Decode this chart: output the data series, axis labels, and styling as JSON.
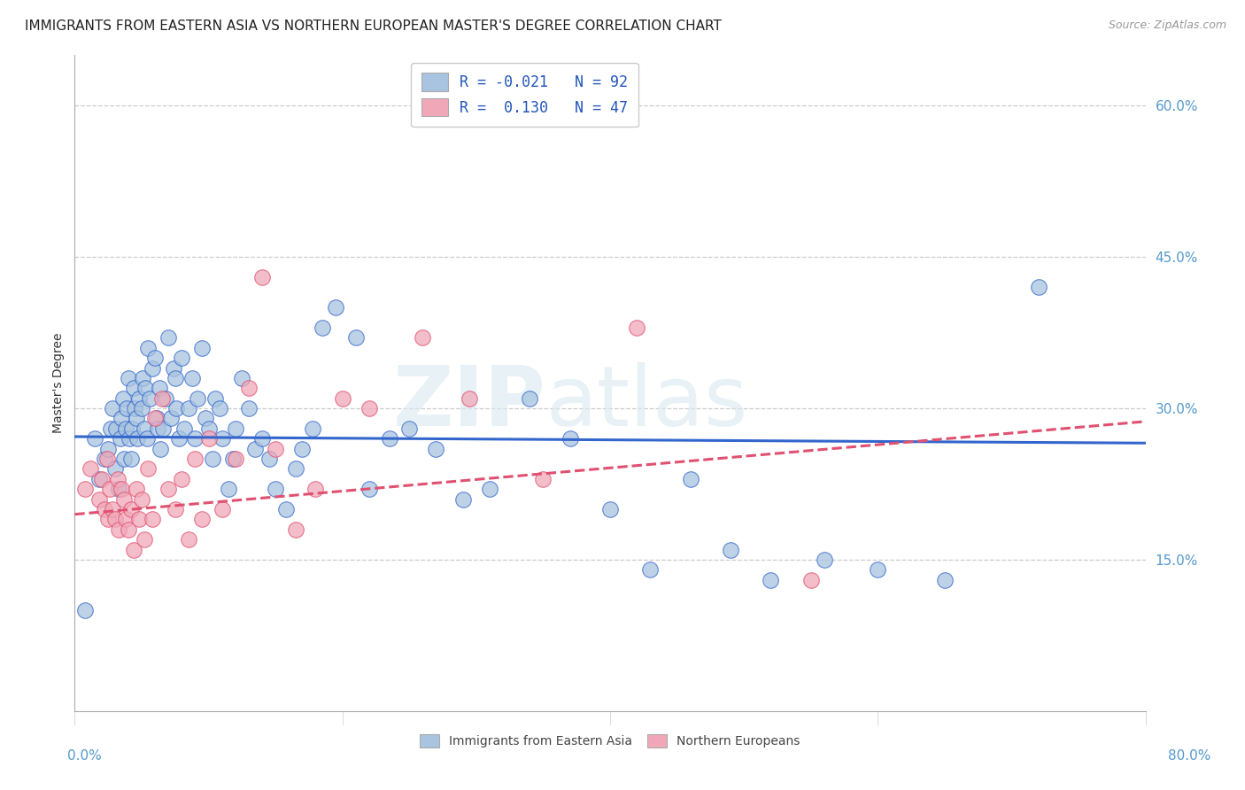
{
  "title": "IMMIGRANTS FROM EASTERN ASIA VS NORTHERN EUROPEAN MASTER'S DEGREE CORRELATION CHART",
  "source": "Source: ZipAtlas.com",
  "ylabel": "Master's Degree",
  "ytick_values": [
    0.15,
    0.3,
    0.45,
    0.6
  ],
  "xtick_values": [
    0.0,
    0.2,
    0.4,
    0.6,
    0.8
  ],
  "xlim": [
    0.0,
    0.8
  ],
  "ylim": [
    0.0,
    0.65
  ],
  "blue_R": -0.021,
  "blue_N": 92,
  "pink_R": 0.13,
  "pink_N": 47,
  "legend_label_blue": "Immigrants from Eastern Asia",
  "legend_label_pink": "Northern Europeans",
  "blue_color": "#a8c4e0",
  "pink_color": "#f0a8b8",
  "blue_line_color": "#3366cc",
  "pink_line_color": "#e05070",
  "watermark_zip": "ZIP",
  "watermark_atlas": "atlas",
  "background_color": "#ffffff",
  "grid_color": "#cccccc",
  "tick_color": "#5599cc",
  "title_fontsize": 11,
  "axis_label_fontsize": 10,
  "tick_fontsize": 11,
  "blue_scatter_x": [
    0.008,
    0.015,
    0.018,
    0.022,
    0.025,
    0.027,
    0.028,
    0.03,
    0.031,
    0.033,
    0.034,
    0.035,
    0.036,
    0.037,
    0.038,
    0.039,
    0.04,
    0.041,
    0.042,
    0.043,
    0.044,
    0.045,
    0.046,
    0.047,
    0.048,
    0.05,
    0.051,
    0.052,
    0.053,
    0.054,
    0.055,
    0.056,
    0.058,
    0.06,
    0.061,
    0.062,
    0.063,
    0.064,
    0.066,
    0.068,
    0.07,
    0.072,
    0.074,
    0.075,
    0.076,
    0.078,
    0.08,
    0.082,
    0.085,
    0.088,
    0.09,
    0.092,
    0.095,
    0.098,
    0.1,
    0.103,
    0.105,
    0.108,
    0.11,
    0.115,
    0.118,
    0.12,
    0.125,
    0.13,
    0.135,
    0.14,
    0.145,
    0.15,
    0.158,
    0.165,
    0.17,
    0.178,
    0.185,
    0.195,
    0.21,
    0.22,
    0.235,
    0.25,
    0.27,
    0.29,
    0.31,
    0.34,
    0.37,
    0.4,
    0.43,
    0.46,
    0.49,
    0.52,
    0.56,
    0.6,
    0.65,
    0.72
  ],
  "blue_scatter_y": [
    0.1,
    0.27,
    0.23,
    0.25,
    0.26,
    0.28,
    0.3,
    0.24,
    0.28,
    0.22,
    0.27,
    0.29,
    0.31,
    0.25,
    0.28,
    0.3,
    0.33,
    0.27,
    0.25,
    0.28,
    0.32,
    0.3,
    0.29,
    0.27,
    0.31,
    0.3,
    0.33,
    0.28,
    0.32,
    0.27,
    0.36,
    0.31,
    0.34,
    0.35,
    0.29,
    0.28,
    0.32,
    0.26,
    0.28,
    0.31,
    0.37,
    0.29,
    0.34,
    0.33,
    0.3,
    0.27,
    0.35,
    0.28,
    0.3,
    0.33,
    0.27,
    0.31,
    0.36,
    0.29,
    0.28,
    0.25,
    0.31,
    0.3,
    0.27,
    0.22,
    0.25,
    0.28,
    0.33,
    0.3,
    0.26,
    0.27,
    0.25,
    0.22,
    0.2,
    0.24,
    0.26,
    0.28,
    0.38,
    0.4,
    0.37,
    0.22,
    0.27,
    0.28,
    0.26,
    0.21,
    0.22,
    0.31,
    0.27,
    0.2,
    0.14,
    0.23,
    0.16,
    0.13,
    0.15,
    0.14,
    0.13,
    0.42
  ],
  "pink_scatter_x": [
    0.008,
    0.012,
    0.018,
    0.02,
    0.022,
    0.024,
    0.025,
    0.026,
    0.028,
    0.03,
    0.032,
    0.033,
    0.035,
    0.037,
    0.038,
    0.04,
    0.042,
    0.044,
    0.046,
    0.048,
    0.05,
    0.052,
    0.055,
    0.058,
    0.06,
    0.065,
    0.07,
    0.075,
    0.08,
    0.085,
    0.09,
    0.095,
    0.1,
    0.11,
    0.12,
    0.13,
    0.14,
    0.15,
    0.165,
    0.18,
    0.2,
    0.22,
    0.26,
    0.295,
    0.35,
    0.42,
    0.55
  ],
  "pink_scatter_y": [
    0.22,
    0.24,
    0.21,
    0.23,
    0.2,
    0.25,
    0.19,
    0.22,
    0.2,
    0.19,
    0.23,
    0.18,
    0.22,
    0.21,
    0.19,
    0.18,
    0.2,
    0.16,
    0.22,
    0.19,
    0.21,
    0.17,
    0.24,
    0.19,
    0.29,
    0.31,
    0.22,
    0.2,
    0.23,
    0.17,
    0.25,
    0.19,
    0.27,
    0.2,
    0.25,
    0.32,
    0.43,
    0.26,
    0.18,
    0.22,
    0.31,
    0.3,
    0.37,
    0.31,
    0.23,
    0.38,
    0.13
  ],
  "blue_line_intercept": 0.272,
  "blue_line_slope": -0.008,
  "pink_line_intercept": 0.195,
  "pink_line_slope": 0.115
}
